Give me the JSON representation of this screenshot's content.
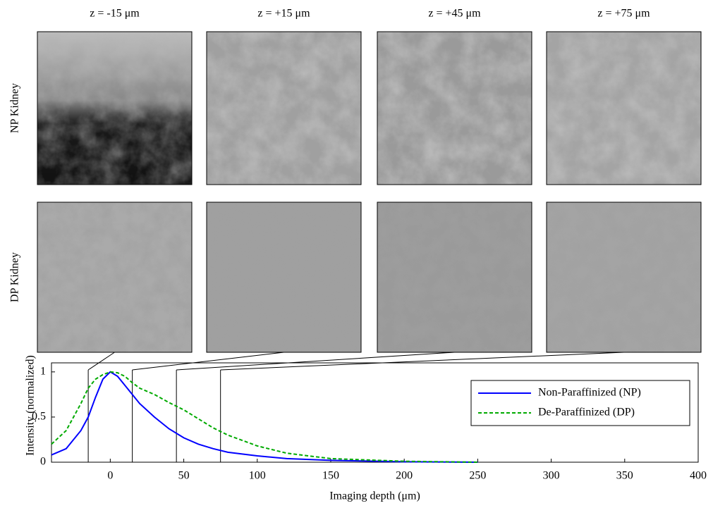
{
  "panels": {
    "columns": [
      "z = -15 μm",
      "z = +15 μm",
      "z = +45 μm",
      "z = +75 μm"
    ],
    "rows": [
      "NP Kidney",
      "DP Kidney"
    ]
  },
  "chart_data": {
    "type": "line",
    "x_label": "Imaging depth (μm)",
    "y_label": "Intensity (normalized)",
    "x": [
      -40,
      -30,
      -20,
      -15,
      -10,
      -5,
      0,
      5,
      10,
      15,
      20,
      30,
      40,
      50,
      60,
      70,
      80,
      100,
      120,
      150,
      200,
      250
    ],
    "series": [
      {
        "name": "Non-Paraffinized (NP)",
        "color": "#0000ff",
        "dash": false,
        "values": [
          0.08,
          0.15,
          0.35,
          0.5,
          0.72,
          0.92,
          1.0,
          0.95,
          0.85,
          0.75,
          0.65,
          0.5,
          0.37,
          0.27,
          0.2,
          0.15,
          0.11,
          0.07,
          0.04,
          0.02,
          0.005,
          0
        ]
      },
      {
        "name": "De-Paraffinized (DP)",
        "color": "#00aa00",
        "dash": true,
        "values": [
          0.2,
          0.35,
          0.65,
          0.82,
          0.92,
          0.97,
          1.0,
          0.99,
          0.95,
          0.88,
          0.82,
          0.75,
          0.66,
          0.58,
          0.48,
          0.38,
          0.3,
          0.18,
          0.1,
          0.04,
          0.01,
          0
        ]
      }
    ],
    "highlight_x": [
      -15,
      15,
      45,
      75
    ],
    "xlim": [
      -40,
      400
    ],
    "ylim": [
      0,
      1.1
    ],
    "xticks": [
      0,
      50,
      100,
      150,
      200,
      250,
      300,
      350,
      400
    ],
    "yticks": [
      0,
      0.5,
      1
    ],
    "legend": "upper right"
  }
}
